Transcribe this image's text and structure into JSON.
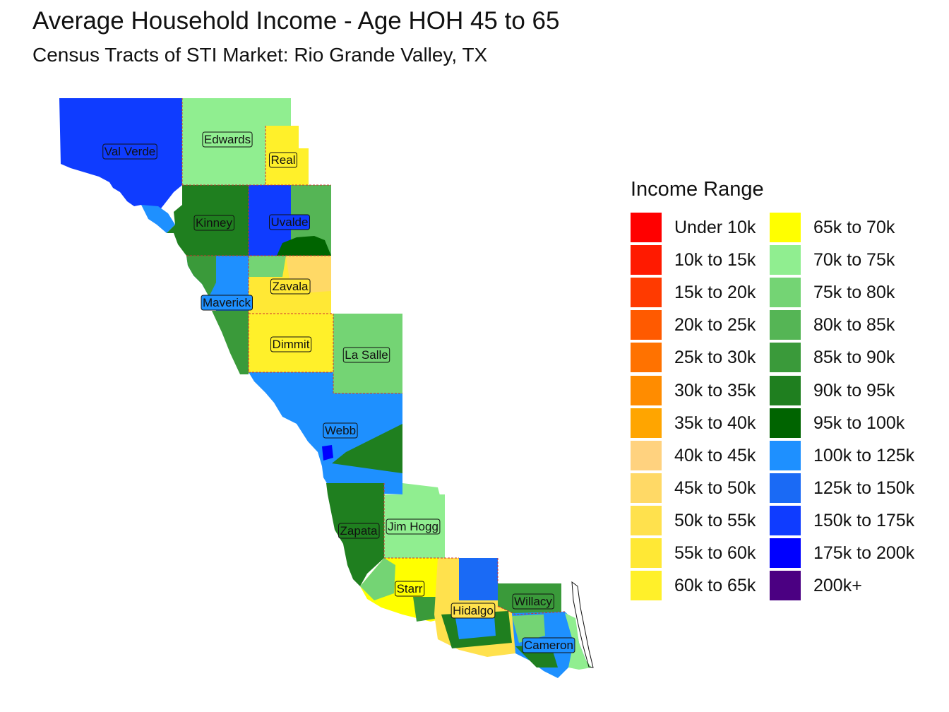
{
  "title": "Average Household Income - Age HOH 45 to 65",
  "subtitle": "Census Tracts of STI Market: Rio Grande Valley, TX",
  "legend": {
    "title": "Income Range",
    "items": [
      {
        "label": "Under 10k",
        "color": "#FF0000"
      },
      {
        "label": "10k to 15k",
        "color": "#FF1A00"
      },
      {
        "label": "15k to 20k",
        "color": "#FF3A00"
      },
      {
        "label": "20k to 25k",
        "color": "#FF5A00"
      },
      {
        "label": "25k to 30k",
        "color": "#FF7200"
      },
      {
        "label": "30k to 35k",
        "color": "#FF8C00"
      },
      {
        "label": "35k to 40k",
        "color": "#FFA500"
      },
      {
        "label": "40k to 45k",
        "color": "#FFD27F"
      },
      {
        "label": "45k to 50k",
        "color": "#FFD966"
      },
      {
        "label": "50k to 55k",
        "color": "#FFE14D"
      },
      {
        "label": "55k to 60k",
        "color": "#FFE835"
      },
      {
        "label": "60k to 65k",
        "color": "#FFF02A"
      },
      {
        "label": "65k to 70k",
        "color": "#FFFF00"
      },
      {
        "label": "70k to 75k",
        "color": "#90EE90"
      },
      {
        "label": "75k to 80k",
        "color": "#74D474"
      },
      {
        "label": "80k to 85k",
        "color": "#55B555"
      },
      {
        "label": "85k to 90k",
        "color": "#3A9A3A"
      },
      {
        "label": "90k to 95k",
        "color": "#1F7F1F"
      },
      {
        "label": "95k to 100k",
        "color": "#006400"
      },
      {
        "label": "100k to 125k",
        "color": "#1E90FF"
      },
      {
        "label": "125k to 150k",
        "color": "#1A6AF5"
      },
      {
        "label": "150k to 175k",
        "color": "#0F3CFF"
      },
      {
        "label": "175k to 200k",
        "color": "#0000FF"
      },
      {
        "label": "200k+",
        "color": "#4B0082"
      }
    ]
  },
  "counties": [
    {
      "name": "Val Verde",
      "color": "#0F3CFF"
    },
    {
      "name": "Edwards",
      "color": "#90EE90"
    },
    {
      "name": "Real",
      "color": "#FFF02A"
    },
    {
      "name": "Kinney",
      "color": "#1F7F1F"
    },
    {
      "name": "Uvalde",
      "color": "#0F3CFF"
    },
    {
      "name": "Maverick",
      "color": "#1E90FF"
    },
    {
      "name": "Zavala",
      "color": "#FFE835"
    },
    {
      "name": "Dimmit",
      "color": "#FFF02A"
    },
    {
      "name": "La Salle",
      "color": "#74D474"
    },
    {
      "name": "Webb",
      "color": "#1E90FF"
    },
    {
      "name": "Zapata",
      "color": "#1F7F1F"
    },
    {
      "name": "Jim Hogg",
      "color": "#90EE90"
    },
    {
      "name": "Starr",
      "color": "#FFFF00"
    },
    {
      "name": "Hidalgo",
      "color": "#FFE14D"
    },
    {
      "name": "Willacy",
      "color": "#3A9A3A"
    },
    {
      "name": "Cameron",
      "color": "#1E90FF"
    }
  ]
}
